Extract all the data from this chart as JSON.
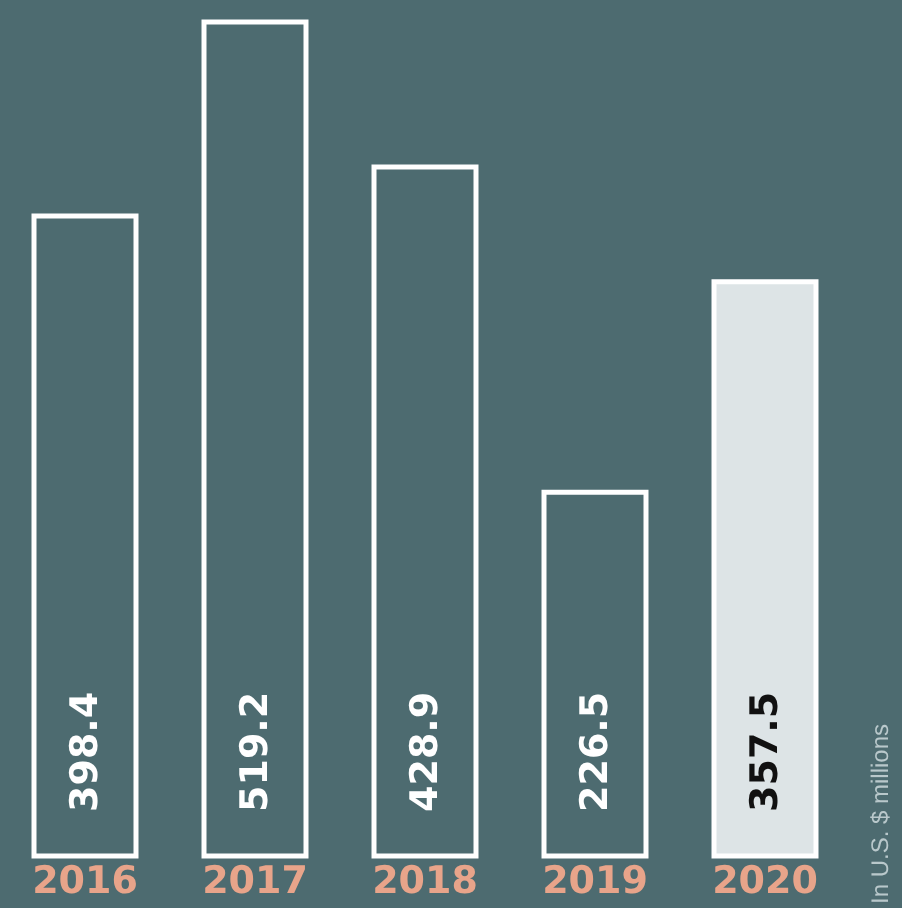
{
  "chart_data": {
    "type": "bar",
    "categories": [
      "2016",
      "2017",
      "2018",
      "2019",
      "2020"
    ],
    "values": [
      398.4,
      519.2,
      428.9,
      226.5,
      357.5
    ],
    "colors": [
      "#4d6b70",
      "#4d6b70",
      "#4d6b70",
      "#4d6b70",
      "#dde4e6"
    ],
    "data_labels": true,
    "annotations": [
      "In U.S. $ millions"
    ],
    "grid": false
  }
}
